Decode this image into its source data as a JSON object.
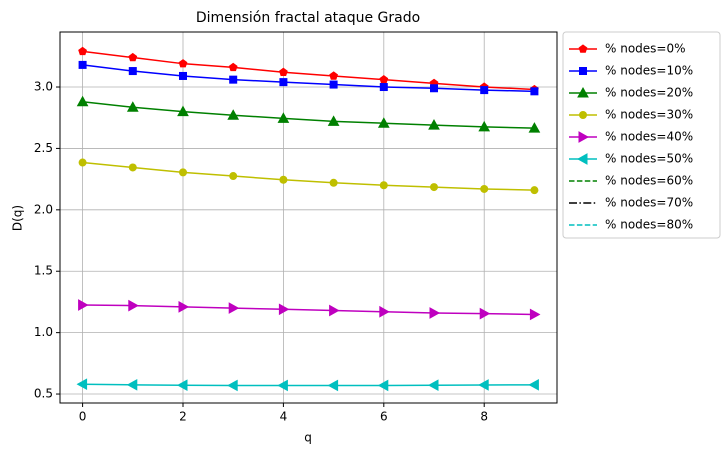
{
  "chart_data": {
    "type": "line",
    "title": "Dimensión fractal ataque Grado",
    "xlabel": "q",
    "ylabel": "D(q)",
    "x": [
      0,
      1,
      2,
      3,
      4,
      5,
      6,
      7,
      8,
      9
    ],
    "series": [
      {
        "name": "% nodes=0%",
        "color": "#ff0000",
        "marker": "pentagon",
        "dash": "solid",
        "values": [
          3.29,
          3.24,
          3.19,
          3.16,
          3.12,
          3.09,
          3.06,
          3.03,
          3.0,
          2.98
        ]
      },
      {
        "name": "% nodes=10%",
        "color": "#0000ff",
        "marker": "square",
        "dash": "solid",
        "values": [
          3.18,
          3.13,
          3.09,
          3.06,
          3.04,
          3.02,
          3.0,
          2.99,
          2.975,
          2.965
        ]
      },
      {
        "name": "% nodes=20%",
        "color": "#008000",
        "marker": "triangle-up",
        "dash": "solid",
        "values": [
          2.88,
          2.835,
          2.8,
          2.77,
          2.745,
          2.72,
          2.705,
          2.69,
          2.675,
          2.665
        ]
      },
      {
        "name": "% nodes=30%",
        "color": "#bfbf00",
        "marker": "circle",
        "dash": "solid",
        "values": [
          2.385,
          2.345,
          2.305,
          2.275,
          2.245,
          2.22,
          2.2,
          2.185,
          2.17,
          2.16
        ]
      },
      {
        "name": "% nodes=40%",
        "color": "#bf00bf",
        "marker": "triangle-right",
        "dash": "solid",
        "values": [
          1.225,
          1.22,
          1.21,
          1.2,
          1.19,
          1.18,
          1.17,
          1.16,
          1.155,
          1.148
        ]
      },
      {
        "name": "% nodes=50%",
        "color": "#00bfbf",
        "marker": "triangle-left",
        "dash": "solid",
        "values": [
          0.58,
          0.575,
          0.572,
          0.57,
          0.57,
          0.57,
          0.57,
          0.572,
          0.574,
          0.575
        ]
      },
      {
        "name": "% nodes=60%",
        "color": "#008000",
        "marker": "none",
        "dash": "dashed",
        "values": [
          null,
          null,
          null,
          null,
          null,
          null,
          null,
          null,
          null,
          null
        ]
      },
      {
        "name": "% nodes=70%",
        "color": "#000000",
        "marker": "none",
        "dash": "dashdot",
        "values": [
          null,
          null,
          null,
          null,
          null,
          null,
          null,
          null,
          null,
          null
        ]
      },
      {
        "name": "% nodes=80%",
        "color": "#00bfbf",
        "marker": "none",
        "dash": "dashed",
        "values": [
          null,
          null,
          null,
          null,
          null,
          null,
          null,
          null,
          null,
          null
        ]
      }
    ],
    "xlim": [
      -0.45,
      9.45
    ],
    "xticks": [
      0,
      2,
      4,
      6,
      8
    ],
    "ylim": [
      0.427,
      3.448
    ],
    "yticks": [
      0.5,
      {
        "value": 1,
        "label": "1.0"
      },
      1.5,
      {
        "value": 2,
        "label": "2.0"
      },
      2.5,
      {
        "value": 3,
        "label": "3.0"
      }
    ],
    "grid": true,
    "legend": "outside-upper-right"
  }
}
